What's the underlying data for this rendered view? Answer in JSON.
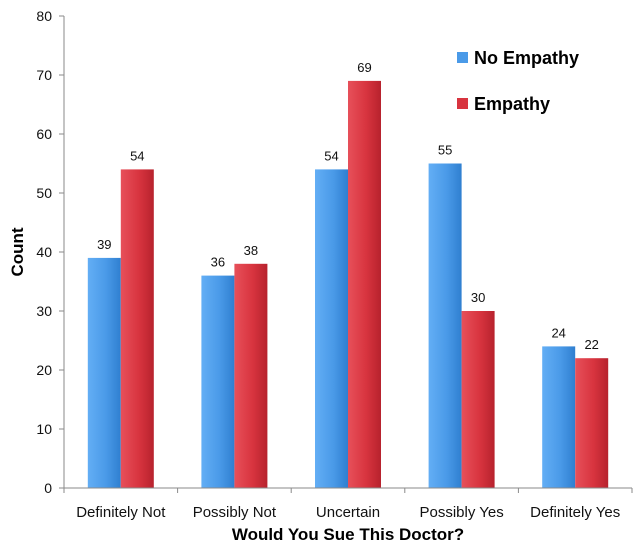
{
  "chart_data": {
    "type": "bar",
    "title": "",
    "xlabel": "Would You Sue This Doctor?",
    "ylabel": "Count",
    "ylim": [
      0,
      80
    ],
    "yticks": [
      0,
      10,
      20,
      30,
      40,
      50,
      60,
      70,
      80
    ],
    "grid": false,
    "legend_position": "top-right",
    "categories": [
      "Definitely Not",
      "Possibly Not",
      "Uncertain",
      "Possibly Yes",
      "Definitely Yes"
    ],
    "series": [
      {
        "name": "No Empathy",
        "color": "#4a9ae8",
        "values": [
          39,
          36,
          54,
          55,
          24
        ]
      },
      {
        "name": "Empathy",
        "color": "#d8343f",
        "values": [
          54,
          38,
          69,
          30,
          22
        ]
      }
    ]
  }
}
